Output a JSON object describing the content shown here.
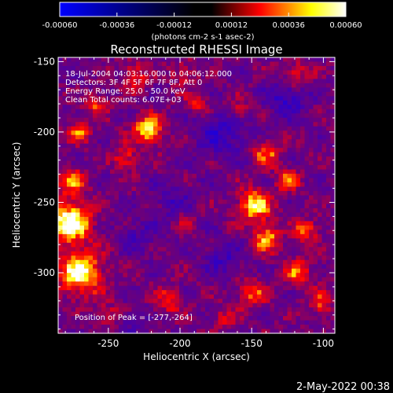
{
  "colorbar": {
    "min": -0.0006,
    "max": 0.0006,
    "tick_labels": [
      "-0.00060",
      "-0.00036",
      "-0.00012",
      "0.00012",
      "0.00036",
      "0.00060"
    ],
    "unit_label": "(photons cm-2 s-1 asec-2)",
    "colors": [
      "#0000ff",
      "#000000",
      "#ff0000",
      "#ffff00",
      "#ffffff"
    ]
  },
  "image": {
    "title": "Reconstructed RHESSI Image",
    "time_range": "18-Jul-2004 04:03:16.000 to 04:06:12.000",
    "detectors": "Detectors: 3F 4F 5F 6F 7F 8F, Att 0",
    "energy_range": "Energy Range: 25.0 - 50.0 keV",
    "clean_info": "Clean     Total counts: 6.07E+03",
    "peak_position": "Position of Peak = [-277,-264]"
  },
  "axes": {
    "xlabel": "Heliocentric X (arcsec)",
    "ylabel": "Heliocentric Y (arcsec)",
    "xlim": [
      -285,
      -92
    ],
    "ylim": [
      -343,
      -147
    ],
    "x_ticks": [
      -250,
      -200,
      -150,
      -100
    ],
    "x_tick_labels": [
      "-250",
      "-200",
      "-150",
      "-100"
    ],
    "y_ticks": [
      -150,
      -200,
      -250,
      -300
    ],
    "y_tick_labels": [
      "-150",
      "-200",
      "-250",
      "-300"
    ]
  },
  "footer": {
    "timestamp": "2-May-2022 00:38"
  }
}
